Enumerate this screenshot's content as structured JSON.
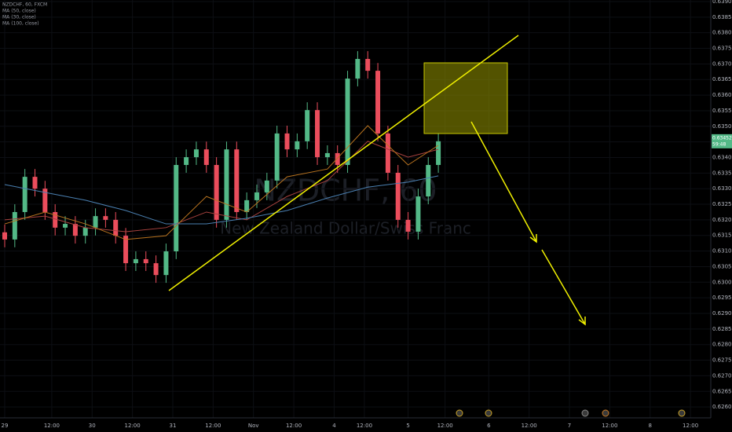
{
  "chart_data": {
    "type": "candlestick",
    "symbol": "NZDCHF, 60, FXCM",
    "watermark": "NZDCHF, 60",
    "watermark_subtitle": "New Zealand Dollar/Swiss Franc",
    "last_price_label": "0.63452",
    "countdown": "59:48",
    "up_color": "#53b987",
    "down_color": "#eb4d5c",
    "candles": {
      "x": [
        0,
        3,
        6,
        9,
        12,
        15,
        18,
        21,
        24,
        27,
        30,
        33,
        36,
        39,
        42,
        45,
        48,
        51,
        54,
        57,
        60,
        63,
        66,
        69,
        72,
        75,
        78,
        81,
        84,
        87,
        90,
        93,
        96,
        99,
        102,
        105,
        108,
        111,
        114,
        117,
        120,
        123,
        126,
        129
      ],
      "open": [
        0.6316,
        0.63137,
        0.63225,
        0.63338,
        0.633,
        0.63225,
        0.63175,
        0.63187,
        0.63149,
        0.63175,
        0.63212,
        0.632,
        0.63149,
        0.63061,
        0.63074,
        0.63061,
        0.63023,
        0.63099,
        0.63376,
        0.63401,
        0.63426,
        0.63376,
        0.632,
        0.63426,
        0.63225,
        0.63263,
        0.63288,
        0.63326,
        0.63477,
        0.63426,
        0.63452,
        0.63552,
        0.63401,
        0.63414,
        0.63376,
        0.63653,
        0.63716,
        0.63678,
        0.63477,
        0.63351,
        0.632,
        0.63162,
        0.63275,
        0.63376
      ],
      "high": [
        0.63185,
        0.6325,
        0.63363,
        0.63363,
        0.63325,
        0.6325,
        0.63212,
        0.63212,
        0.632,
        0.63237,
        0.63237,
        0.63225,
        0.63174,
        0.63099,
        0.63099,
        0.63086,
        0.63124,
        0.63401,
        0.63426,
        0.63451,
        0.63451,
        0.63401,
        0.63451,
        0.63451,
        0.63288,
        0.63313,
        0.63351,
        0.63502,
        0.63502,
        0.63477,
        0.63577,
        0.63577,
        0.63439,
        0.63439,
        0.63678,
        0.63741,
        0.63741,
        0.63703,
        0.63502,
        0.63376,
        0.63225,
        0.633,
        0.63401,
        0.63477
      ],
      "low": [
        0.63112,
        0.63112,
        0.632,
        0.63275,
        0.632,
        0.6315,
        0.6315,
        0.63124,
        0.63124,
        0.6315,
        0.63175,
        0.63124,
        0.63036,
        0.63036,
        0.63036,
        0.62998,
        0.62998,
        0.63074,
        0.63351,
        0.63376,
        0.63351,
        0.63175,
        0.63175,
        0.632,
        0.632,
        0.63238,
        0.63263,
        0.63301,
        0.63401,
        0.63401,
        0.63427,
        0.63376,
        0.63376,
        0.63351,
        0.63351,
        0.63628,
        0.63653,
        0.63452,
        0.63326,
        0.63175,
        0.63137,
        0.63137,
        0.6325,
        0.63351
      ],
      "close": [
        0.63137,
        0.63225,
        0.63338,
        0.633,
        0.63225,
        0.63175,
        0.63187,
        0.63149,
        0.63175,
        0.63212,
        0.632,
        0.63149,
        0.63061,
        0.63074,
        0.63061,
        0.63023,
        0.63099,
        0.63376,
        0.63401,
        0.63426,
        0.63376,
        0.632,
        0.63426,
        0.63225,
        0.63263,
        0.63288,
        0.63326,
        0.63477,
        0.63426,
        0.63452,
        0.63552,
        0.63401,
        0.63414,
        0.63376,
        0.63653,
        0.63716,
        0.63678,
        0.63477,
        0.63351,
        0.632,
        0.63162,
        0.63275,
        0.63376,
        0.63452
      ]
    },
    "series": [
      {
        "name": "MA (50, close)",
        "color": "#a8423f",
        "x": [
          0,
          12,
          24,
          36,
          48,
          60,
          72,
          84,
          96,
          108,
          120,
          129
        ],
        "values": [
          0.632,
          0.63212,
          0.63175,
          0.63162,
          0.63175,
          0.63225,
          0.632,
          0.63275,
          0.63326,
          0.63452,
          0.63401,
          0.63426
        ]
      },
      {
        "name": "MA (30, close)",
        "color": "#b8731f",
        "x": [
          0,
          12,
          24,
          36,
          48,
          60,
          72,
          84,
          96,
          108,
          120,
          129
        ],
        "values": [
          0.63187,
          0.63225,
          0.63187,
          0.63137,
          0.63149,
          0.63275,
          0.63225,
          0.63338,
          0.63363,
          0.63502,
          0.63376,
          0.63439
        ]
      },
      {
        "name": "MA (100, close)",
        "color": "#4a7fb0",
        "x": [
          0,
          12,
          24,
          36,
          48,
          60,
          72,
          84,
          96,
          108,
          120,
          129
        ],
        "values": [
          0.63313,
          0.63288,
          0.63263,
          0.6323,
          0.63187,
          0.63187,
          0.63205,
          0.6323,
          0.6327,
          0.63305,
          0.63321,
          0.63341
        ]
      }
    ],
    "xlim": [
      -1.4,
      210.05
    ],
    "xticks": [
      {
        "value": 0,
        "label": "29"
      },
      {
        "value": 14,
        "label": "12:00"
      },
      {
        "value": 26,
        "label": "30"
      },
      {
        "value": 38,
        "label": "12:00"
      },
      {
        "value": 50,
        "label": "31"
      },
      {
        "value": 62,
        "label": "12:00"
      },
      {
        "value": 74,
        "label": "Nov"
      },
      {
        "value": 86,
        "label": "12:00"
      },
      {
        "value": 98,
        "label": "4"
      },
      {
        "value": 107,
        "label": "12:00"
      },
      {
        "value": 120,
        "label": "5"
      },
      {
        "value": 131,
        "label": "12:00"
      },
      {
        "value": 144,
        "label": "6"
      },
      {
        "value": 156,
        "label": "12:00"
      },
      {
        "value": 168,
        "label": "7"
      },
      {
        "value": 180,
        "label": "12:00"
      },
      {
        "value": 192,
        "label": "8"
      },
      {
        "value": 204,
        "label": "12:00"
      }
    ],
    "ylim": [
      0.62565,
      0.63905
    ],
    "yticks": [
      {
        "value": 0.639,
        "label": "0.63900"
      },
      {
        "value": 0.6385,
        "label": "0.63850"
      },
      {
        "value": 0.638,
        "label": "0.63800"
      },
      {
        "value": 0.6375,
        "label": "0.63750"
      },
      {
        "value": 0.637,
        "label": "0.63700"
      },
      {
        "value": 0.6365,
        "label": "0.63650"
      },
      {
        "value": 0.636,
        "label": "0.63600"
      },
      {
        "value": 0.6355,
        "label": "0.63550"
      },
      {
        "value": 0.635,
        "label": "0.63500"
      },
      {
        "value": 0.6345,
        "label": "0.63450"
      },
      {
        "value": 0.634,
        "label": "0.63400"
      },
      {
        "value": 0.6335,
        "label": "0.63350"
      },
      {
        "value": 0.633,
        "label": "0.63300"
      },
      {
        "value": 0.6325,
        "label": "0.63250"
      },
      {
        "value": 0.632,
        "label": "0.63200"
      },
      {
        "value": 0.6315,
        "label": "0.63150"
      },
      {
        "value": 0.631,
        "label": "0.63100"
      },
      {
        "value": 0.6305,
        "label": "0.63050"
      },
      {
        "value": 0.63,
        "label": "0.63000"
      },
      {
        "value": 0.6295,
        "label": "0.62950"
      },
      {
        "value": 0.629,
        "label": "0.62900"
      },
      {
        "value": 0.6285,
        "label": "0.62850"
      },
      {
        "value": 0.628,
        "label": "0.62800"
      },
      {
        "value": 0.6275,
        "label": "0.62750"
      },
      {
        "value": 0.627,
        "label": "0.62700"
      },
      {
        "value": 0.6265,
        "label": "0.62650"
      },
      {
        "value": 0.626,
        "label": "0.62600"
      }
    ]
  }
}
